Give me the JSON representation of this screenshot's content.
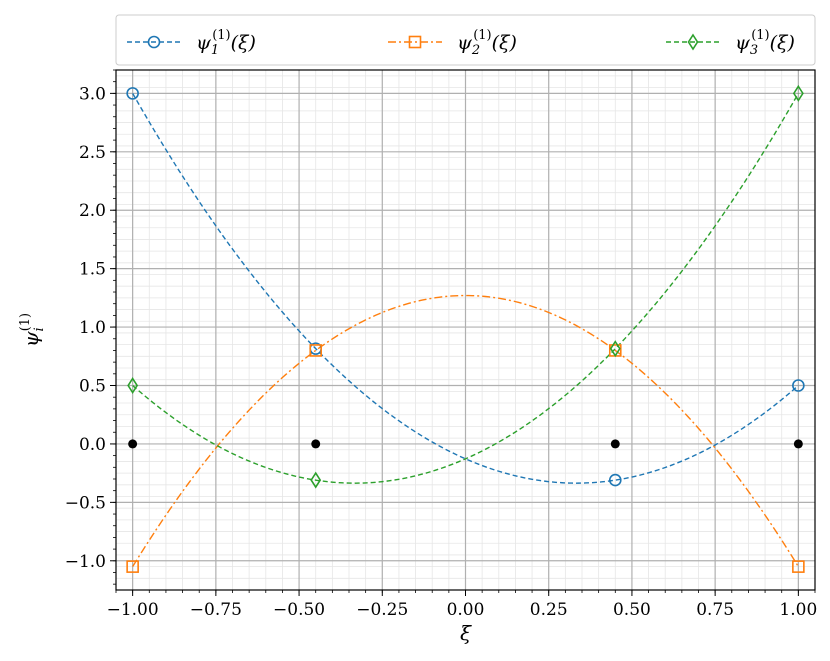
{
  "chart_data": {
    "type": "line",
    "title": "",
    "xlabel": "ξ",
    "ylabel": "ψ_i^(1)",
    "xlim": [
      -1.05,
      1.05
    ],
    "ylim": [
      -1.25,
      3.2
    ],
    "grid": true,
    "minor_grid": true,
    "legend_placement": "top, outside",
    "x_ticks": [
      -1.0,
      -0.75,
      -0.5,
      -0.25,
      0.0,
      0.25,
      0.5,
      0.75,
      1.0
    ],
    "x_tick_labels": [
      "−1.00",
      "−0.75",
      "−0.50",
      "−0.25",
      "0.00",
      "0.25",
      "0.50",
      "0.75",
      "1.00"
    ],
    "y_ticks": [
      -1.0,
      -0.5,
      0.0,
      0.5,
      1.0,
      1.5,
      2.0,
      2.5,
      3.0
    ],
    "y_tick_labels": [
      "−1.0",
      "−0.5",
      "0.0",
      "0.5",
      "1.0",
      "1.5",
      "2.0",
      "2.5",
      "3.0"
    ],
    "series": [
      {
        "name": "ψ1(1)(ξ)",
        "legend_base": "ψ",
        "legend_sub": "1",
        "legend_sup": "(1)",
        "legend_tail": "(ξ)",
        "color": "#1f77b4",
        "dash": "dashed",
        "marker": "circle",
        "curve_coeffs": [
          -0.1275,
          -1.25,
          1.8775
        ],
        "marker_points": [
          [
            -1.0,
            3.0
          ],
          [
            -0.45,
            0.8156
          ],
          [
            0.45,
            -0.3094
          ],
          [
            1.0,
            0.5
          ]
        ]
      },
      {
        "name": "ψ2(1)(ξ)",
        "legend_base": "ψ",
        "legend_sub": "2",
        "legend_sup": "(1)",
        "legend_tail": "(ξ)",
        "color": "#ff7f0e",
        "dash": "dashdot",
        "marker": "square",
        "curve_coeffs": [
          1.27,
          0.0,
          -2.32
        ],
        "marker_points": [
          [
            -1.0,
            -1.05
          ],
          [
            -0.45,
            0.8
          ],
          [
            0.45,
            0.8
          ],
          [
            1.0,
            -1.05
          ]
        ]
      },
      {
        "name": "ψ3(1)(ξ)",
        "legend_base": "ψ",
        "legend_sub": "3",
        "legend_sup": "(1)",
        "legend_tail": "(ξ)",
        "color": "#2ca02c",
        "dash": "dashed",
        "marker": "diamond",
        "curve_coeffs": [
          -0.1275,
          1.25,
          1.8775
        ],
        "marker_points": [
          [
            -1.0,
            0.5
          ],
          [
            -0.45,
            -0.3094
          ],
          [
            0.45,
            0.8156
          ],
          [
            1.0,
            3.0
          ]
        ]
      }
    ],
    "nodes": {
      "color": "#000000",
      "marker": "dot",
      "points": [
        [
          -1.0,
          0.0
        ],
        [
          -0.45,
          0.0
        ],
        [
          0.45,
          0.0
        ],
        [
          1.0,
          0.0
        ]
      ]
    }
  }
}
